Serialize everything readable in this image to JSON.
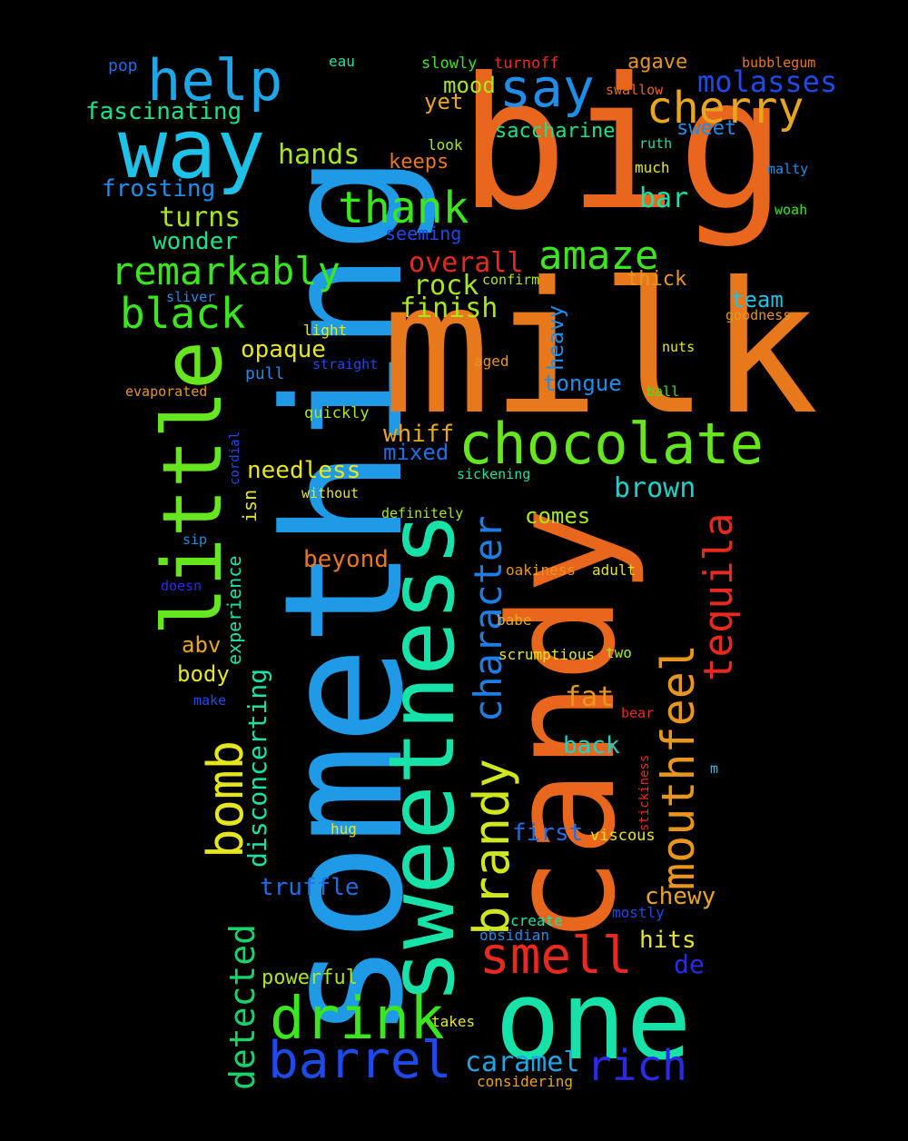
{
  "words": [
    {
      "text": "something",
      "color": "#1e9ae6"
    },
    {
      "text": "big",
      "color": "#e8671c"
    },
    {
      "text": "milk",
      "color": "#e8781c"
    },
    {
      "text": "candy",
      "color": "#e8671c"
    },
    {
      "text": "sweetness",
      "color": "#17e3a8"
    },
    {
      "text": "one",
      "color": "#17e3a8"
    },
    {
      "text": "way",
      "color": "#1ec2e8"
    },
    {
      "text": "little",
      "color": "#66e61e"
    },
    {
      "text": "chocolate",
      "color": "#66e61e"
    },
    {
      "text": "help",
      "color": "#1ea6e8"
    },
    {
      "text": "say",
      "color": "#1e8ee8"
    },
    {
      "text": "cherry",
      "color": "#e8a61e"
    },
    {
      "text": "thank",
      "color": "#3be61e"
    },
    {
      "text": "amaze",
      "color": "#3be61e"
    },
    {
      "text": "remarkably",
      "color": "#3be61e"
    },
    {
      "text": "black",
      "color": "#3be61e"
    },
    {
      "text": "drink",
      "color": "#3be61e"
    },
    {
      "text": "barrel",
      "color": "#1e4ae8"
    },
    {
      "text": "smell",
      "color": "#e82a1e"
    },
    {
      "text": "brandy",
      "color": "#d0e61e"
    },
    {
      "text": "character",
      "color": "#1e7ee8"
    },
    {
      "text": "mouthfeel",
      "color": "#e8961e"
    },
    {
      "text": "tequila",
      "color": "#e82a1e"
    },
    {
      "text": "bomb",
      "color": "#e6e61e"
    },
    {
      "text": "detected",
      "color": "#17d36a"
    },
    {
      "text": "rich",
      "color": "#2a2ae8"
    },
    {
      "text": "caramel",
      "color": "#1ea6e8"
    },
    {
      "text": "disconcerting",
      "color": "#17e3a8"
    },
    {
      "text": "molasses",
      "color": "#1e4ae8"
    },
    {
      "text": "fascinating",
      "color": "#17e38a"
    },
    {
      "text": "frosting",
      "color": "#1e8ee8"
    },
    {
      "text": "hands",
      "color": "#a8e61e"
    },
    {
      "text": "turns",
      "color": "#a8e61e"
    },
    {
      "text": "wonder",
      "color": "#17e38a"
    },
    {
      "text": "overall",
      "color": "#e82a1e"
    },
    {
      "text": "rock",
      "color": "#a8e61e"
    },
    {
      "text": "finish",
      "color": "#a8e61e"
    },
    {
      "text": "opaque",
      "color": "#e6e61e"
    },
    {
      "text": "whiff",
      "color": "#e8a61e"
    },
    {
      "text": "mixed",
      "color": "#1e6ee8"
    },
    {
      "text": "needless",
      "color": "#e6e61e"
    },
    {
      "text": "brown",
      "color": "#17d3c8"
    },
    {
      "text": "comes",
      "color": "#a8e61e"
    },
    {
      "text": "beyond",
      "color": "#e8781c"
    },
    {
      "text": "fat",
      "color": "#e8961e"
    },
    {
      "text": "back",
      "color": "#17d3c8"
    },
    {
      "text": "first",
      "color": "#1e6ee8"
    },
    {
      "text": "truffle",
      "color": "#1e6ee8"
    },
    {
      "text": "chewy",
      "color": "#e8a61e"
    },
    {
      "text": "hits",
      "color": "#e6e61e"
    },
    {
      "text": "de",
      "color": "#2a2ae8"
    },
    {
      "text": "powerful",
      "color": "#a8e61e"
    },
    {
      "text": "bar",
      "color": "#17e3a8"
    },
    {
      "text": "keeps",
      "color": "#e8781c"
    },
    {
      "text": "mood",
      "color": "#a8e61e"
    },
    {
      "text": "yet",
      "color": "#e8a61e"
    },
    {
      "text": "saccharine",
      "color": "#17e38a"
    },
    {
      "text": "sweet",
      "color": "#1e8ee8"
    },
    {
      "text": "agave",
      "color": "#e8961e"
    },
    {
      "text": "heavy",
      "color": "#1e8ee8"
    },
    {
      "text": "tongue",
      "color": "#1e8ee8"
    },
    {
      "text": "team",
      "color": "#1ec2e8"
    },
    {
      "text": "thick",
      "color": "#e8961e"
    },
    {
      "text": "body",
      "color": "#e6e61e"
    },
    {
      "text": "abv",
      "color": "#e8a61e"
    },
    {
      "text": "experience",
      "color": "#17e3a8"
    },
    {
      "text": "isn",
      "color": "#e6e61e"
    },
    {
      "text": "seeming",
      "color": "#1e4ae8"
    },
    {
      "text": "pop",
      "color": "#1e6ee8"
    },
    {
      "text": "eau",
      "color": "#17e3a8"
    },
    {
      "text": "slowly",
      "color": "#3be61e"
    },
    {
      "text": "turnoff",
      "color": "#e82a1e"
    },
    {
      "text": "bubblegum",
      "color": "#e8781c"
    },
    {
      "text": "swallow",
      "color": "#e8671c"
    },
    {
      "text": "look",
      "color": "#a8e61e"
    },
    {
      "text": "ruth",
      "color": "#17e3a8"
    },
    {
      "text": "much",
      "color": "#e6e61e"
    },
    {
      "text": "malty",
      "color": "#1e8ee8"
    },
    {
      "text": "woah",
      "color": "#3be61e"
    },
    {
      "text": "confirm",
      "color": "#a8e61e"
    },
    {
      "text": "goodness",
      "color": "#e8961e"
    },
    {
      "text": "sliver",
      "color": "#1e8ee8"
    },
    {
      "text": "light",
      "color": "#e6e61e"
    },
    {
      "text": "straight",
      "color": "#1e4ae8"
    },
    {
      "text": "aged",
      "color": "#e8961e"
    },
    {
      "text": "nuts",
      "color": "#e6e61e"
    },
    {
      "text": "pull",
      "color": "#1e8ee8"
    },
    {
      "text": "evaporated",
      "color": "#e8961e"
    },
    {
      "text": "ball",
      "color": "#3be61e"
    },
    {
      "text": "quickly",
      "color": "#a8e61e"
    },
    {
      "text": "cordial",
      "color": "#1e4ae8"
    },
    {
      "text": "sickening",
      "color": "#17e3a8"
    },
    {
      "text": "without",
      "color": "#e6e61e"
    },
    {
      "text": "definitely",
      "color": "#a8e61e"
    },
    {
      "text": "sip",
      "color": "#1e8ee8"
    },
    {
      "text": "doesn",
      "color": "#2a2ae8"
    },
    {
      "text": "oakiness",
      "color": "#e8961e"
    },
    {
      "text": "adult",
      "color": "#e6e61e"
    },
    {
      "text": "babe",
      "color": "#e8a61e"
    },
    {
      "text": "scrumptious",
      "color": "#e6e61e"
    },
    {
      "text": "two",
      "color": "#a8e61e"
    },
    {
      "text": "make",
      "color": "#1e4ae8"
    },
    {
      "text": "bear",
      "color": "#e82a1e"
    },
    {
      "text": "stickiness",
      "color": "#e82a1e"
    },
    {
      "text": "m",
      "color": "#1ec2e8"
    },
    {
      "text": "hug",
      "color": "#e6e61e"
    },
    {
      "text": "viscous",
      "color": "#e6e61e"
    },
    {
      "text": "mostly",
      "color": "#1e4ae8"
    },
    {
      "text": "create",
      "color": "#17e3a8"
    },
    {
      "text": "obsidian",
      "color": "#1e8ee8"
    },
    {
      "text": "takes",
      "color": "#e6e61e"
    },
    {
      "text": "considering",
      "color": "#e8a61e"
    }
  ]
}
